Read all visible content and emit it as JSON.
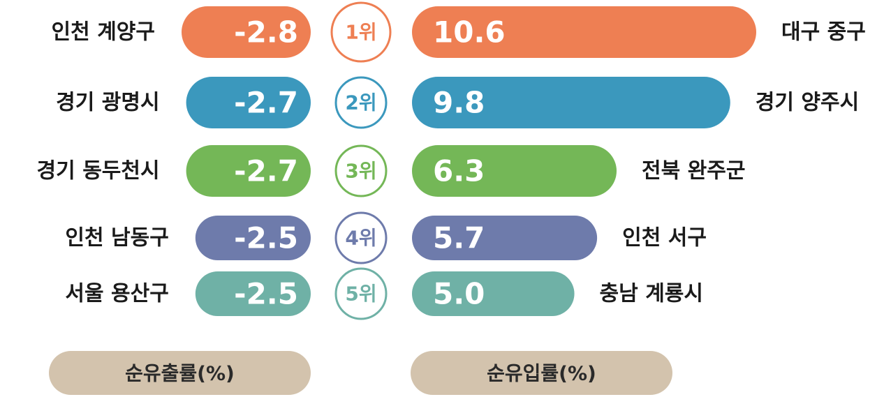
{
  "chart_data": {
    "type": "bar",
    "categories": [
      "1위",
      "2위",
      "3위",
      "4위",
      "5위"
    ],
    "colors": [
      "#ee7f53",
      "#3b98bd",
      "#74b757",
      "#6e7bab",
      "#6fb1a6"
    ],
    "series": [
      {
        "name": "순유출률(%)",
        "color": "#d3c3ad",
        "labels": [
          "인천 계양구",
          "경기 광명시",
          "경기 동두천시",
          "인천 남동구",
          "서울 용산구"
        ],
        "values": [
          -2.8,
          -2.7,
          -2.7,
          -2.5,
          -2.5
        ]
      },
      {
        "name": "순유입률(%)",
        "color": "#d3c3ad",
        "labels": [
          "대구 중구",
          "경기 양주시",
          "전북 완주군",
          "인천 서구",
          "충남 계룡시"
        ],
        "values": [
          10.6,
          9.8,
          6.3,
          5.7,
          5.0
        ],
        "value_labels": [
          "10.6",
          "9.8",
          "6.3",
          "5.7",
          "5.0"
        ]
      }
    ]
  }
}
